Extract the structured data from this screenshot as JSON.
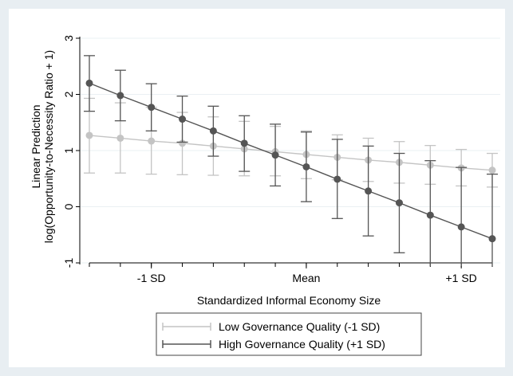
{
  "chart_data": {
    "type": "line",
    "title": "",
    "xlabel": "Standardized Informal Economy Size",
    "ylabel_lines": [
      "Linear Prediction",
      "log(Opportunity-to-Necessity Ratio + 1)"
    ],
    "x": [
      -1.4,
      -1.2,
      -1.0,
      -0.8,
      -0.6,
      -0.4,
      -0.2,
      0.0,
      0.2,
      0.4,
      0.6,
      0.8,
      1.0,
      1.2
    ],
    "xlim": [
      -1.4,
      1.2
    ],
    "x_ticks": [
      {
        "value": -1,
        "label": "-1 SD"
      },
      {
        "value": 0,
        "label": "Mean"
      },
      {
        "value": 1,
        "label": "+1 SD"
      }
    ],
    "ylim": [
      -1,
      3
    ],
    "y_ticks": [
      -1,
      0,
      1,
      2,
      3
    ],
    "grid": true,
    "legend_position": "bottom",
    "series": [
      {
        "name": "Low Governance Quality (-1 SD)",
        "color": "#c4c4c4",
        "values": [
          1.27,
          1.22,
          1.17,
          1.13,
          1.08,
          1.03,
          0.98,
          0.93,
          0.88,
          0.83,
          0.79,
          0.74,
          0.69,
          0.65
        ],
        "lower": [
          0.6,
          0.6,
          0.58,
          0.57,
          0.56,
          0.55,
          0.55,
          0.5,
          0.48,
          0.45,
          0.42,
          0.4,
          0.37,
          0.35
        ],
        "upper": [
          1.93,
          1.85,
          1.77,
          1.68,
          1.6,
          1.52,
          1.43,
          1.35,
          1.28,
          1.22,
          1.16,
          1.09,
          1.02,
          0.95
        ]
      },
      {
        "name": "High Governance Quality (+1 SD)",
        "color": "#555555",
        "values": [
          2.2,
          1.98,
          1.77,
          1.56,
          1.35,
          1.13,
          0.92,
          0.71,
          0.49,
          0.28,
          0.07,
          -0.15,
          -0.36,
          -0.57
        ],
        "lower": [
          1.7,
          1.53,
          1.35,
          1.15,
          0.9,
          0.63,
          0.37,
          0.09,
          -0.21,
          -0.52,
          -0.82,
          -1.12,
          -1.42,
          -1.72
        ],
        "upper": [
          2.69,
          2.43,
          2.19,
          1.97,
          1.79,
          1.62,
          1.47,
          1.33,
          1.2,
          1.08,
          0.95,
          0.82,
          0.7,
          0.58
        ]
      }
    ]
  }
}
